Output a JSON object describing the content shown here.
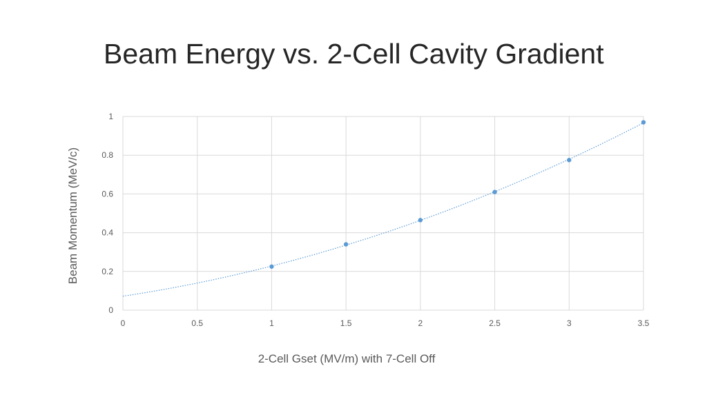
{
  "title": "Beam Energy vs. 2-Cell Cavity Gradient",
  "chart_data": {
    "type": "scatter",
    "title": "Beam Energy vs. 2-Cell Cavity Gradient",
    "xlabel": "2-Cell Gset (MV/m) with 7-Cell Off",
    "ylabel": "Beam Momentum (MeV/c)",
    "xlim": [
      0,
      3.5
    ],
    "ylim": [
      0,
      1
    ],
    "xticks": [
      0,
      0.5,
      1,
      1.5,
      2,
      2.5,
      3,
      3.5
    ],
    "xtick_labels": [
      "0",
      "0.5",
      "1",
      "1.5",
      "2",
      "2.5",
      "3",
      "3.5"
    ],
    "yticks": [
      0,
      0.2,
      0.4,
      0.6,
      0.8,
      1
    ],
    "ytick_labels": [
      "0",
      "0.2",
      "0.4",
      "0.6",
      "0.8",
      "1"
    ],
    "grid": true,
    "trendline": "polynomial",
    "series": [
      {
        "x": [
          1,
          1.5,
          2,
          2.5,
          3,
          3.5
        ],
        "y": [
          0.225,
          0.34,
          0.465,
          0.61,
          0.775,
          0.97
        ],
        "color": "#5B9BD5"
      }
    ]
  }
}
